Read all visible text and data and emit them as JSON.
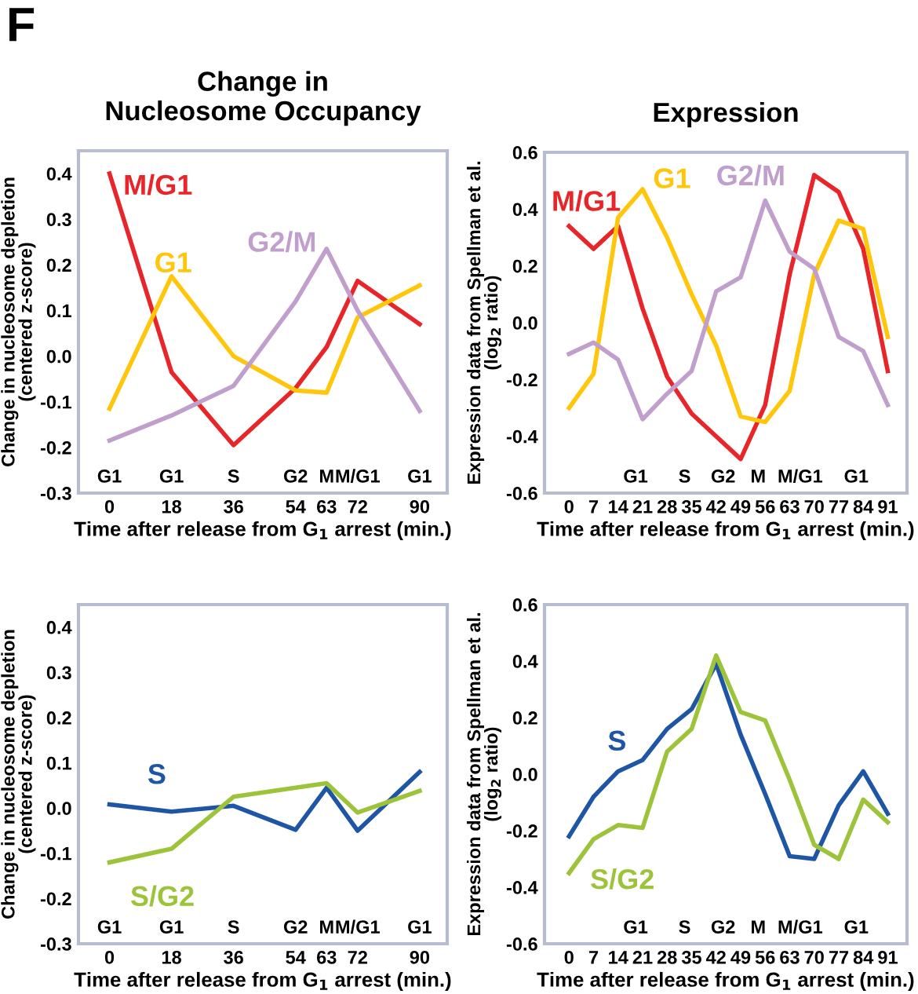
{
  "chart_data": [
    {
      "type": "line",
      "title": "Change in\nNucleosome Occupancy",
      "xlabel": "Time after release from G$_{1}$ arrest (min.)",
      "ylabel": "Change in nucleosome depletion\n(centered z-score)",
      "annotations": [
        "F",
        "G1",
        "G1",
        "S",
        "G2",
        "M",
        "M/G1",
        "G1"
      ],
      "x": [
        0,
        18,
        36,
        54,
        63,
        72,
        90
      ],
      "xlim": [
        -9,
        98
      ],
      "xticks": [
        0,
        18,
        36,
        54,
        63,
        72,
        90
      ],
      "ylim": [
        -0.3,
        0.45
      ],
      "yticks": [
        {
          "value": -0.3,
          "label": "-0.3"
        },
        {
          "value": -0.2,
          "label": "-0.2"
        },
        {
          "value": -0.1,
          "label": "-0.1"
        },
        {
          "value": 0,
          "label": "0.0"
        },
        {
          "value": 0.1,
          "label": "0.1"
        },
        {
          "value": 0.2,
          "label": "0.2"
        },
        {
          "value": 0.3,
          "label": "0.3"
        },
        {
          "value": 0.4,
          "label": "0.4"
        }
      ],
      "grid": false,
      "legend": false,
      "series": [
        {
          "name": "M/G1",
          "color": "#e8262a",
          "values": [
            0.4,
            -0.035,
            -0.195,
            -0.07,
            0.02,
            0.165,
            0.07
          ]
        },
        {
          "name": "G1",
          "color": "#ffc60b",
          "values": [
            -0.115,
            0.175,
            0.0,
            -0.075,
            -0.08,
            0.085,
            0.155
          ]
        },
        {
          "name": "G2/M",
          "color": "#c09fcc",
          "values": [
            -0.185,
            -0.13,
            -0.065,
            0.12,
            0.235,
            0.1,
            -0.12
          ]
        }
      ]
    },
    {
      "type": "line",
      "title": "Expression",
      "xlabel": "Time after release from G$_{1}$ arrest (min.)",
      "ylabel": "Expression data from Spellman et al.\n(log$_{2}$ ratio)",
      "annotations": [
        "G1",
        "S",
        "G2",
        "M",
        "M/G1",
        "G1"
      ],
      "x": [
        0,
        7,
        14,
        21,
        28,
        35,
        42,
        49,
        56,
        63,
        70,
        77,
        84,
        91
      ],
      "xlim": [
        -7,
        96.5
      ],
      "xticks": [
        0,
        7,
        14,
        21,
        28,
        35,
        42,
        49,
        56,
        63,
        70,
        77,
        84,
        91
      ],
      "ylim": [
        -0.6,
        0.6
      ],
      "yticks": [
        {
          "value": -0.6,
          "label": "-0.6"
        },
        {
          "value": -0.4,
          "label": "-0.4"
        },
        {
          "value": -0.2,
          "label": "-0.2"
        },
        {
          "value": 0,
          "label": "0.0"
        },
        {
          "value": 0.2,
          "label": "0.2"
        },
        {
          "value": 0.4,
          "label": "0.4"
        },
        {
          "value": 0.6,
          "label": "0.6"
        }
      ],
      "grid": false,
      "legend": false,
      "series": [
        {
          "name": "M/G1",
          "color": "#e8262a",
          "values": [
            0.34,
            0.26,
            0.34,
            0.05,
            -0.19,
            -0.32,
            -0.4,
            -0.48,
            -0.29,
            0.17,
            0.52,
            0.46,
            0.26,
            -0.17
          ]
        },
        {
          "name": "G1",
          "color": "#ffc60b",
          "values": [
            -0.3,
            -0.18,
            0.37,
            0.47,
            0.3,
            0.1,
            -0.08,
            -0.33,
            -0.35,
            -0.24,
            0.17,
            0.36,
            0.33,
            -0.05
          ]
        },
        {
          "name": "G2/M",
          "color": "#c09fcc",
          "values": [
            -0.11,
            -0.07,
            -0.13,
            -0.34,
            -0.25,
            -0.17,
            0.11,
            0.16,
            0.43,
            0.25,
            0.19,
            -0.05,
            -0.1,
            -0.29
          ]
        }
      ]
    },
    {
      "type": "line",
      "xlabel": "Time after release from G$_{1}$ arrest (min.)",
      "ylabel": "Change in nucleosome depletion\n(centered z-score)",
      "annotations": [
        "G1",
        "G1",
        "S",
        "G2",
        "M",
        "M/G1",
        "G1"
      ],
      "x": [
        0,
        18,
        36,
        54,
        63,
        72,
        90
      ],
      "xlim": [
        -9,
        98
      ],
      "xticks": [
        0,
        18,
        36,
        54,
        63,
        72,
        90
      ],
      "ylim": [
        -0.3,
        0.45
      ],
      "yticks": [
        {
          "value": -0.3,
          "label": "-0.3"
        },
        {
          "value": -0.2,
          "label": "-0.2"
        },
        {
          "value": -0.1,
          "label": "-0.1"
        },
        {
          "value": 0,
          "label": "0.0"
        },
        {
          "value": 0.1,
          "label": "0.1"
        },
        {
          "value": 0.2,
          "label": "0.2"
        },
        {
          "value": 0.3,
          "label": "0.3"
        },
        {
          "value": 0.4,
          "label": "0.4"
        }
      ],
      "grid": false,
      "legend": false,
      "series": [
        {
          "name": "S",
          "color": "#1f55a5",
          "values": [
            0.008,
            -0.008,
            0.005,
            -0.048,
            0.045,
            -0.05,
            0.08
          ]
        },
        {
          "name": "S/G2",
          "color": "#9dc33b",
          "values": [
            -0.12,
            -0.09,
            0.025,
            0.045,
            0.055,
            -0.01,
            0.038
          ]
        }
      ]
    },
    {
      "type": "line",
      "xlabel": "Time after release from G$_{1}$ arrest (min.)",
      "ylabel": "Expression data from Spellman et al.\n(log$_{2}$ ratio)",
      "annotations": [
        "G1",
        "S",
        "G2",
        "M",
        "M/G1",
        "G1"
      ],
      "x": [
        0,
        7,
        14,
        21,
        28,
        35,
        42,
        49,
        56,
        63,
        70,
        77,
        84,
        91
      ],
      "xlim": [
        -7,
        96.5
      ],
      "xticks": [
        0,
        7,
        14,
        21,
        28,
        35,
        42,
        49,
        56,
        63,
        70,
        77,
        84,
        91
      ],
      "ylim": [
        -0.6,
        0.6
      ],
      "yticks": [
        {
          "value": -0.6,
          "label": "-0.6"
        },
        {
          "value": -0.4,
          "label": "-0.4"
        },
        {
          "value": -0.2,
          "label": "-0.2"
        },
        {
          "value": 0,
          "label": "0.0"
        },
        {
          "value": 0.2,
          "label": "0.2"
        },
        {
          "value": 0.4,
          "label": "0.4"
        },
        {
          "value": 0.6,
          "label": "0.6"
        }
      ],
      "grid": false,
      "legend": false,
      "series": [
        {
          "name": "S",
          "color": "#1f55a5",
          "values": [
            -0.22,
            -0.08,
            0.01,
            0.05,
            0.16,
            0.23,
            0.39,
            0.14,
            -0.07,
            -0.29,
            -0.3,
            -0.11,
            0.01,
            -0.14
          ]
        },
        {
          "name": "S/G2",
          "color": "#9dc33b",
          "values": [
            -0.35,
            -0.23,
            -0.18,
            -0.19,
            0.08,
            0.16,
            0.42,
            0.22,
            0.19,
            -0.02,
            -0.25,
            -0.3,
            -0.09,
            -0.17
          ]
        }
      ]
    }
  ]
}
